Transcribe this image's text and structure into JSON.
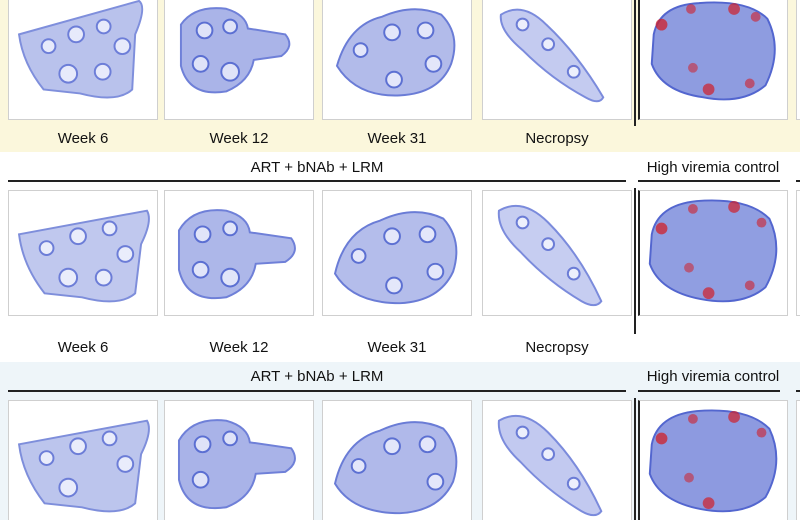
{
  "rows": [
    {
      "labels": [
        "Week 6",
        "Week 12",
        "Week 31",
        "Necropsy"
      ]
    },
    {
      "group_title": "ART + bNAb + LRM",
      "control_title": "High viremia control",
      "labels": [
        "Week 6",
        "Week 12",
        "Week 31",
        "Necropsy"
      ]
    },
    {
      "group_title": "ART + bNAb + LRM",
      "control_title": "High viremia control"
    }
  ],
  "colors": {
    "band_top": "#fbf7dc",
    "band_bottom": "#eef5f9",
    "tissue_stain": "#5a6fd0",
    "signal": "#d0202a"
  }
}
